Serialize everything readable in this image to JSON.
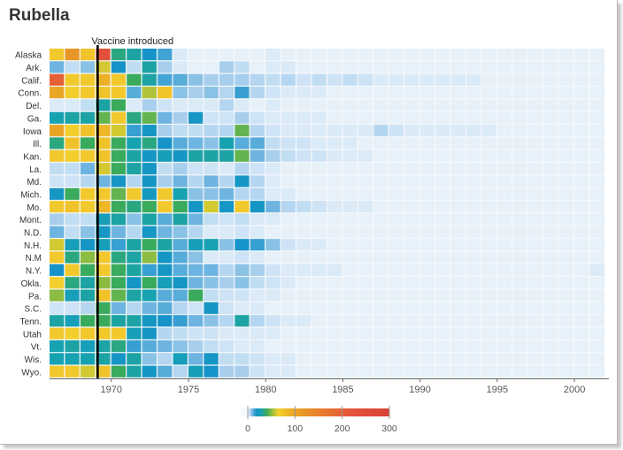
{
  "page": {
    "title": "Rubella"
  },
  "chart_data": {
    "type": "heatmap",
    "title": "Rubella",
    "annotation": "Vaccine introduced",
    "vaccine_year": 1969,
    "y_categories": [
      "Alaska",
      "Ark.",
      "Calif.",
      "Conn.",
      "Del.",
      "Ga.",
      "Iowa",
      "Ill.",
      "Kan.",
      "La.",
      "Md.",
      "Mich.",
      "Mo.",
      "Mont.",
      "N.D.",
      "N.H.",
      "N.M",
      "N.Y.",
      "Okla.",
      "Pa.",
      "S.C.",
      "Tenn.",
      "Utah",
      "Vt.",
      "Wis.",
      "Wyo."
    ],
    "x_range": [
      1966,
      2002
    ],
    "x_ticks": [
      {
        "value": 1970,
        "label": "1970"
      },
      {
        "value": 1975,
        "label": "1975"
      },
      {
        "value": 1980,
        "label": "1980"
      },
      {
        "value": 1985,
        "label": "1985"
      },
      {
        "value": 1990,
        "label": "1990"
      },
      {
        "value": 1995,
        "label": "1995"
      },
      {
        "value": 2000,
        "label": "2000"
      }
    ],
    "color_scale": {
      "domain": [
        0,
        300
      ],
      "ticks": [
        {
          "value": 0,
          "label": "0"
        },
        {
          "value": 100,
          "label": "100"
        },
        {
          "value": 200,
          "label": "200"
        },
        {
          "value": 300,
          "label": "300"
        }
      ],
      "stops": [
        {
          "value": 0,
          "color": "#f4f7fb"
        },
        {
          "value": 2,
          "color": "#daeaf7"
        },
        {
          "value": 5,
          "color": "#b5d6f0"
        },
        {
          "value": 10,
          "color": "#6db4e0"
        },
        {
          "value": 18,
          "color": "#1693c9"
        },
        {
          "value": 28,
          "color": "#17a2b2"
        },
        {
          "value": 40,
          "color": "#3aaa5c"
        },
        {
          "value": 52,
          "color": "#9cbf3c"
        },
        {
          "value": 65,
          "color": "#f3cf2e"
        },
        {
          "value": 100,
          "color": "#e9a524"
        },
        {
          "value": 150,
          "color": "#e7802b"
        },
        {
          "value": 220,
          "color": "#e5533a"
        },
        {
          "value": 300,
          "color": "#d94238"
        }
      ]
    },
    "rows": [
      {
        "state": "Alaska",
        "values": [
          70,
          120,
          75,
          240,
          35,
          30,
          18,
          14,
          2,
          1,
          1,
          1,
          1,
          1,
          2,
          1,
          1,
          1,
          1,
          1,
          1,
          1,
          1,
          1,
          1,
          1,
          1,
          1,
          1,
          1,
          1,
          1,
          1,
          1,
          1,
          1
        ]
      },
      {
        "state": "Ark.",
        "values": [
          10,
          4,
          8,
          60,
          18,
          4,
          30,
          6,
          2,
          1,
          1,
          6,
          4,
          1,
          2,
          2,
          1,
          1,
          1,
          1,
          1,
          1,
          1,
          1,
          1,
          1,
          1,
          1,
          1,
          1,
          1,
          1,
          1,
          1,
          1,
          1
        ]
      },
      {
        "state": "Calif.",
        "values": [
          200,
          70,
          70,
          90,
          70,
          40,
          30,
          14,
          12,
          8,
          6,
          6,
          6,
          5,
          4,
          5,
          3,
          4,
          3,
          4,
          3,
          2,
          2,
          2,
          2,
          2,
          2,
          2,
          1,
          1,
          1,
          1,
          1,
          1,
          1,
          1
        ]
      },
      {
        "state": "Conn.",
        "values": [
          100,
          65,
          70,
          75,
          70,
          12,
          55,
          75,
          8,
          6,
          8,
          5,
          15,
          5,
          3,
          2,
          2,
          2,
          1,
          1,
          1,
          1,
          1,
          1,
          1,
          1,
          1,
          1,
          1,
          1,
          1,
          1,
          1,
          1,
          1,
          1
        ]
      },
      {
        "state": "Del.",
        "values": [
          2,
          2,
          4,
          30,
          40,
          2,
          6,
          3,
          2,
          2,
          2,
          5,
          2,
          1,
          2,
          1,
          1,
          1,
          1,
          1,
          1,
          1,
          1,
          1,
          1,
          1,
          1,
          1,
          1,
          1,
          1,
          1,
          1,
          1,
          1,
          1
        ]
      },
      {
        "state": "Ga.",
        "values": [
          28,
          30,
          30,
          45,
          70,
          35,
          45,
          10,
          6,
          20,
          3,
          3,
          6,
          3,
          2,
          2,
          2,
          2,
          1,
          1,
          1,
          1,
          1,
          1,
          1,
          1,
          1,
          1,
          1,
          1,
          1,
          1,
          1,
          1,
          1,
          1
        ]
      },
      {
        "state": "Iowa",
        "values": [
          100,
          65,
          75,
          85,
          60,
          15,
          20,
          6,
          4,
          4,
          5,
          5,
          45,
          5,
          3,
          2,
          2,
          2,
          2,
          2,
          2,
          5,
          3,
          2,
          2,
          2,
          2,
          2,
          2,
          1,
          1,
          1,
          1,
          1,
          1,
          1
        ]
      },
      {
        "state": "Ill.",
        "values": [
          35,
          75,
          40,
          75,
          40,
          28,
          35,
          18,
          12,
          10,
          8,
          28,
          12,
          12,
          4,
          3,
          3,
          2,
          2,
          2,
          1,
          1,
          1,
          1,
          1,
          1,
          1,
          1,
          1,
          1,
          1,
          1,
          1,
          1,
          1,
          1
        ]
      },
      {
        "state": "Kan.",
        "values": [
          70,
          65,
          70,
          75,
          40,
          30,
          20,
          25,
          20,
          30,
          30,
          30,
          45,
          10,
          6,
          4,
          3,
          3,
          2,
          2,
          2,
          1,
          1,
          1,
          1,
          1,
          1,
          1,
          1,
          1,
          1,
          1,
          1,
          1,
          1,
          1
        ]
      },
      {
        "state": "La.",
        "values": [
          4,
          4,
          10,
          60,
          40,
          30,
          20,
          4,
          6,
          3,
          3,
          2,
          5,
          3,
          2,
          1,
          1,
          1,
          1,
          1,
          1,
          1,
          1,
          1,
          1,
          1,
          1,
          1,
          1,
          1,
          1,
          1,
          1,
          1,
          1,
          1
        ]
      },
      {
        "state": "Md.",
        "values": [
          3,
          3,
          5,
          10,
          20,
          5,
          20,
          6,
          10,
          5,
          10,
          5,
          20,
          5,
          2,
          1,
          1,
          1,
          1,
          1,
          1,
          1,
          1,
          1,
          1,
          1,
          1,
          1,
          1,
          1,
          1,
          1,
          1,
          1,
          1,
          1
        ]
      },
      {
        "state": "Mich.",
        "values": [
          20,
          40,
          70,
          70,
          45,
          70,
          22,
          70,
          28,
          8,
          8,
          10,
          5,
          5,
          2,
          2,
          1,
          1,
          1,
          1,
          1,
          1,
          1,
          1,
          1,
          1,
          1,
          1,
          1,
          1,
          1,
          1,
          1,
          1,
          1,
          1
        ]
      },
      {
        "state": "Mo.",
        "values": [
          70,
          75,
          70,
          85,
          40,
          35,
          40,
          70,
          40,
          20,
          60,
          20,
          70,
          20,
          10,
          5,
          4,
          3,
          2,
          2,
          2,
          1,
          1,
          1,
          1,
          1,
          1,
          1,
          1,
          1,
          1,
          1,
          1,
          1,
          1,
          1
        ]
      },
      {
        "state": "Mont.",
        "values": [
          6,
          4,
          4,
          25,
          30,
          8,
          30,
          12,
          30,
          10,
          4,
          3,
          4,
          2,
          2,
          1,
          1,
          1,
          1,
          1,
          1,
          1,
          1,
          1,
          1,
          1,
          1,
          1,
          1,
          1,
          1,
          1,
          1,
          1,
          1,
          1
        ]
      },
      {
        "state": "N.D.",
        "values": [
          10,
          4,
          8,
          20,
          10,
          5,
          20,
          10,
          8,
          5,
          2,
          2,
          3,
          2,
          1,
          1,
          1,
          1,
          1,
          1,
          1,
          1,
          1,
          1,
          1,
          1,
          1,
          1,
          1,
          1,
          1,
          1,
          1,
          1,
          1,
          1
        ]
      },
      {
        "state": "N.H.",
        "values": [
          60,
          25,
          20,
          25,
          15,
          30,
          40,
          30,
          12,
          25,
          28,
          8,
          18,
          15,
          8,
          3,
          2,
          2,
          1,
          1,
          1,
          1,
          1,
          1,
          1,
          1,
          1,
          1,
          1,
          1,
          1,
          1,
          1,
          1,
          1,
          1
        ]
      },
      {
        "state": "N.M",
        "values": [
          70,
          35,
          50,
          70,
          35,
          30,
          50,
          20,
          12,
          8,
          2,
          2,
          3,
          2,
          1,
          1,
          1,
          1,
          1,
          1,
          1,
          1,
          1,
          1,
          1,
          1,
          1,
          1,
          1,
          1,
          1,
          1,
          1,
          1,
          1,
          1
        ]
      },
      {
        "state": "N.Y.",
        "values": [
          18,
          70,
          40,
          70,
          40,
          30,
          15,
          20,
          12,
          10,
          10,
          5,
          8,
          6,
          3,
          2,
          2,
          2,
          2,
          1,
          1,
          1,
          1,
          1,
          1,
          1,
          1,
          1,
          1,
          1,
          1,
          1,
          1,
          1,
          1,
          2
        ]
      },
      {
        "state": "Okla.",
        "values": [
          65,
          35,
          30,
          50,
          40,
          20,
          40,
          25,
          20,
          10,
          8,
          6,
          8,
          4,
          3,
          2,
          1,
          1,
          1,
          1,
          1,
          1,
          1,
          1,
          1,
          1,
          1,
          1,
          1,
          1,
          1,
          1,
          1,
          1,
          1,
          1
        ]
      },
      {
        "state": "Pa.",
        "values": [
          50,
          25,
          30,
          75,
          45,
          30,
          28,
          12,
          12,
          40,
          4,
          3,
          3,
          2,
          2,
          1,
          1,
          1,
          1,
          1,
          1,
          1,
          1,
          1,
          1,
          1,
          1,
          1,
          1,
          1,
          1,
          1,
          1,
          1,
          1,
          1
        ]
      },
      {
        "state": "S.C.",
        "values": [
          3,
          3,
          5,
          40,
          10,
          5,
          10,
          12,
          5,
          3,
          20,
          3,
          2,
          2,
          1,
          1,
          1,
          1,
          1,
          1,
          1,
          1,
          1,
          1,
          1,
          1,
          1,
          1,
          1,
          1,
          1,
          1,
          1,
          1,
          1,
          1
        ]
      },
      {
        "state": "Tenn.",
        "values": [
          30,
          25,
          40,
          40,
          30,
          30,
          20,
          18,
          15,
          10,
          8,
          5,
          30,
          5,
          3,
          2,
          2,
          1,
          1,
          1,
          1,
          1,
          1,
          1,
          1,
          1,
          1,
          1,
          1,
          1,
          1,
          1,
          1,
          1,
          1,
          1
        ]
      },
      {
        "state": "Utah",
        "values": [
          70,
          65,
          70,
          70,
          70,
          25,
          20,
          5,
          4,
          3,
          3,
          2,
          2,
          2,
          2,
          1,
          1,
          1,
          1,
          1,
          1,
          1,
          1,
          1,
          1,
          1,
          1,
          1,
          1,
          1,
          1,
          1,
          1,
          1,
          1,
          1
        ]
      },
      {
        "state": "Vt.",
        "values": [
          28,
          30,
          25,
          30,
          35,
          15,
          12,
          10,
          8,
          6,
          4,
          3,
          2,
          2,
          1,
          1,
          1,
          1,
          1,
          1,
          1,
          1,
          1,
          1,
          1,
          1,
          1,
          1,
          1,
          1,
          1,
          1,
          1,
          1,
          1,
          1
        ]
      },
      {
        "state": "Wis.",
        "values": [
          28,
          28,
          28,
          30,
          20,
          30,
          8,
          5,
          25,
          10,
          20,
          4,
          4,
          3,
          2,
          2,
          1,
          1,
          1,
          1,
          1,
          1,
          1,
          1,
          1,
          1,
          1,
          1,
          1,
          1,
          1,
          1,
          1,
          1,
          1,
          1
        ]
      },
      {
        "state": "Wyo.",
        "values": [
          70,
          70,
          60,
          75,
          40,
          30,
          20,
          12,
          5,
          25,
          18,
          6,
          6,
          3,
          2,
          2,
          1,
          1,
          1,
          1,
          1,
          1,
          1,
          1,
          1,
          1,
          1,
          1,
          1,
          1,
          1,
          1,
          1,
          1,
          1,
          1
        ]
      }
    ]
  }
}
